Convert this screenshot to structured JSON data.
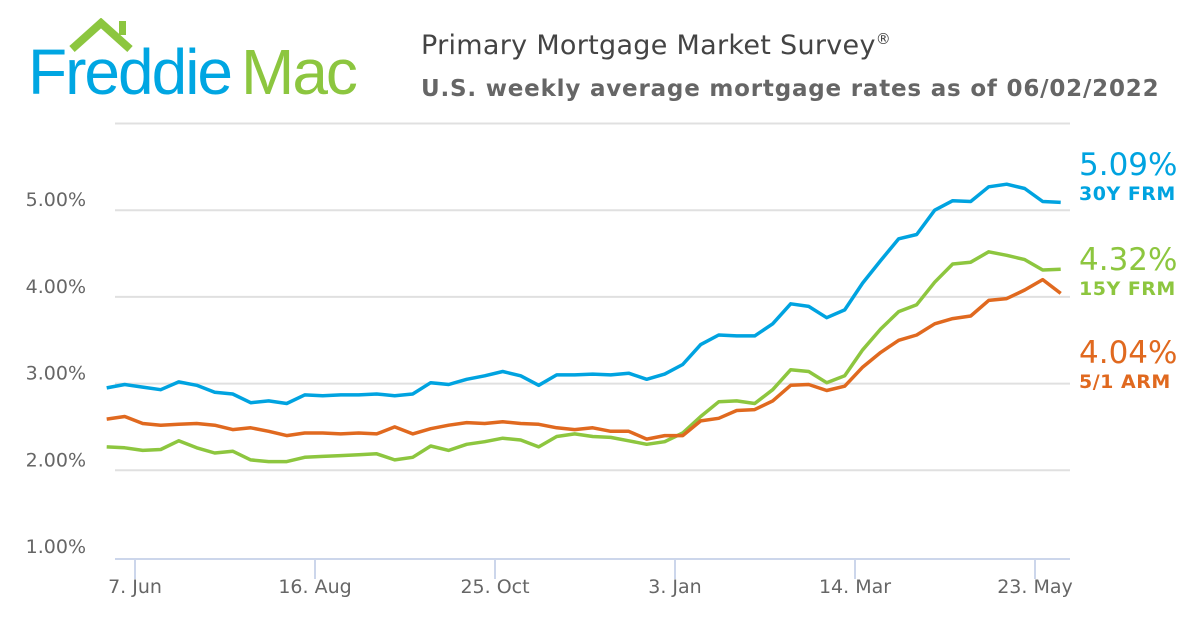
{
  "logo": {
    "text_part1": "Freddie",
    "text_part2": "Mac",
    "colors": {
      "blue": "#00a6e2",
      "green": "#8cc63f"
    }
  },
  "header": {
    "title": "Primary Mortgage Market Survey",
    "title_mark": "®",
    "subtitle": "U.S. weekly average mortgage rates as of 06/02/2022"
  },
  "chart_data": {
    "type": "line",
    "title": "Primary Mortgage Market Survey®",
    "subtitle": "U.S. weekly average mortgage rates as of 06/02/2022",
    "x_start": "2021-05-27",
    "x_interval_days": 7,
    "x_ticks": [
      {
        "date": "2021-06-07",
        "label": "7. Jun"
      },
      {
        "date": "2021-08-16",
        "label": "16. Aug"
      },
      {
        "date": "2021-10-25",
        "label": "25. Oct"
      },
      {
        "date": "2022-01-03",
        "label": "3. Jan"
      },
      {
        "date": "2022-03-14",
        "label": "14. Mar"
      },
      {
        "date": "2022-05-23",
        "label": "23. May"
      }
    ],
    "y_ticks": [
      {
        "value": 1,
        "label": "1.00%"
      },
      {
        "value": 2,
        "label": "2.00%"
      },
      {
        "value": 3,
        "label": "3.00%"
      },
      {
        "value": 4,
        "label": "4.00%"
      },
      {
        "value": 5,
        "label": "5.00%"
      }
    ],
    "ylim": [
      1,
      6
    ],
    "grid": true,
    "legend": "right",
    "series": [
      {
        "name": "30Y FRM",
        "latest": "5.09%",
        "color": "#00a3e0",
        "values": [
          2.95,
          2.99,
          2.96,
          2.93,
          3.02,
          2.98,
          2.9,
          2.88,
          2.78,
          2.8,
          2.77,
          2.87,
          2.86,
          2.87,
          2.87,
          2.88,
          2.86,
          2.88,
          3.01,
          2.99,
          3.05,
          3.09,
          3.14,
          3.09,
          2.98,
          3.1,
          3.1,
          3.11,
          3.1,
          3.12,
          3.05,
          3.11,
          3.22,
          3.45,
          3.56,
          3.55,
          3.55,
          3.69,
          3.92,
          3.89,
          3.76,
          3.85,
          4.16,
          4.42,
          4.67,
          4.72,
          5.0,
          5.11,
          5.1,
          5.27,
          5.3,
          5.25,
          5.1,
          5.09
        ]
      },
      {
        "name": "15Y FRM",
        "latest": "4.32%",
        "color": "#8dc63f",
        "values": [
          2.27,
          2.26,
          2.23,
          2.24,
          2.34,
          2.26,
          2.2,
          2.22,
          2.12,
          2.1,
          2.1,
          2.15,
          2.16,
          2.17,
          2.18,
          2.19,
          2.12,
          2.15,
          2.28,
          2.23,
          2.3,
          2.33,
          2.37,
          2.35,
          2.27,
          2.39,
          2.42,
          2.39,
          2.38,
          2.34,
          2.3,
          2.33,
          2.43,
          2.62,
          2.79,
          2.8,
          2.77,
          2.93,
          3.16,
          3.14,
          3.01,
          3.09,
          3.39,
          3.63,
          3.83,
          3.91,
          4.17,
          4.38,
          4.4,
          4.52,
          4.48,
          4.43,
          4.31,
          4.32
        ]
      },
      {
        "name": "5/1 ARM",
        "latest": "4.04%",
        "color": "#e0691f",
        "values": [
          2.59,
          2.62,
          2.54,
          2.52,
          2.53,
          2.54,
          2.52,
          2.47,
          2.49,
          2.45,
          2.4,
          2.43,
          2.43,
          2.42,
          2.43,
          2.42,
          2.5,
          2.42,
          2.48,
          2.52,
          2.55,
          2.54,
          2.56,
          2.54,
          2.53,
          2.49,
          2.47,
          2.49,
          2.45,
          2.45,
          2.36,
          2.4,
          2.4,
          2.57,
          2.6,
          2.69,
          2.7,
          2.8,
          2.98,
          2.99,
          2.92,
          2.97,
          3.19,
          3.36,
          3.5,
          3.56,
          3.69,
          3.75,
          3.78,
          3.96,
          3.98,
          4.08,
          4.2,
          4.04
        ]
      }
    ]
  }
}
